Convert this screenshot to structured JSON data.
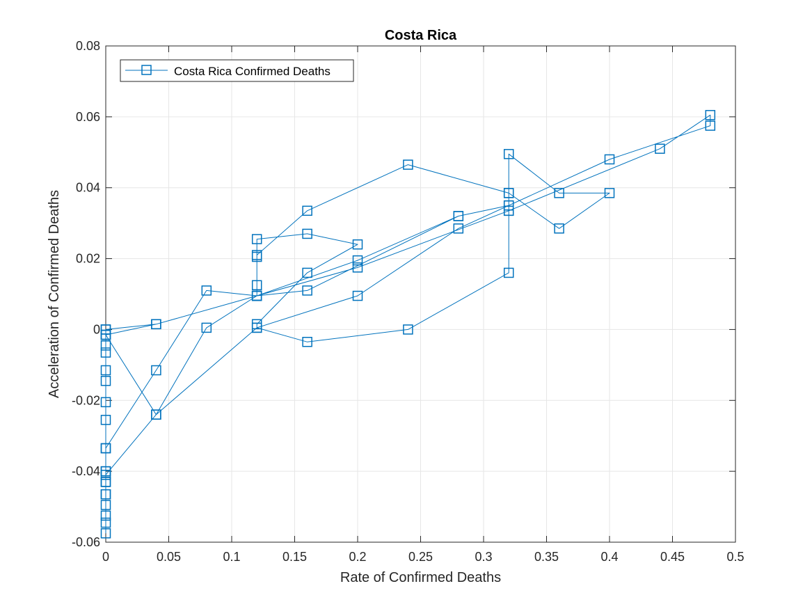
{
  "chart_data": {
    "type": "line",
    "title": "Costa Rica",
    "xlabel": "Rate of Confirmed Deaths",
    "ylabel": "Acceleration of Confirmed Deaths",
    "xlim": [
      0,
      0.5
    ],
    "ylim": [
      -0.06,
      0.08
    ],
    "xticks": [
      0,
      0.05,
      0.1,
      0.15,
      0.2,
      0.25,
      0.3,
      0.35,
      0.4,
      0.45,
      0.5
    ],
    "xtick_labels": [
      "0",
      "0.05",
      "0.1",
      "0.15",
      "0.2",
      "0.25",
      "0.3",
      "0.35",
      "0.4",
      "0.45",
      "0.5"
    ],
    "yticks": [
      -0.06,
      -0.04,
      -0.02,
      0,
      0.02,
      0.04,
      0.06,
      0.08
    ],
    "ytick_labels": [
      "-0.06",
      "-0.04",
      "-0.02",
      "0",
      "0.02",
      "0.04",
      "0.06",
      "0.08"
    ],
    "grid": true,
    "legend_position": "top-left",
    "series": [
      {
        "name": "Costa Rica Confirmed Deaths",
        "color": "#0072BD",
        "marker": "square",
        "x": [
          0,
          0,
          0,
          0,
          0,
          0,
          0,
          0,
          0,
          0,
          0,
          0,
          0,
          0,
          0,
          0,
          0,
          0.04,
          0.08,
          0.12,
          0.12,
          0.12,
          0.12,
          0.16,
          0.2,
          0.16,
          0.12,
          0.12,
          0.16,
          0.24,
          0.32,
          0.32,
          0.32,
          0.32,
          0.32,
          0.36,
          0.4,
          0.36,
          0.32,
          0.24,
          0.16,
          0.12,
          0.12,
          0.08,
          0.04,
          0,
          0,
          0,
          0,
          0,
          0.04,
          0.12,
          0.2,
          0.28,
          0.4,
          0.48,
          0.48,
          0.44,
          0.32,
          0.2,
          0.12,
          0.04,
          0,
          0,
          0.04,
          0.12,
          0.2,
          0.28,
          0.32,
          0.28,
          0.16,
          0.12
        ],
        "y": [
          -0.0575,
          -0.0545,
          -0.0525,
          -0.0495,
          -0.0465,
          -0.043,
          -0.04,
          -0.0335,
          -0.0255,
          -0.0205,
          -0.0145,
          -0.0115,
          -0.0065,
          -0.0045,
          -0.0015,
          0,
          -0.0015,
          -0.024,
          0.0005,
          0.0095,
          0.0125,
          0.0205,
          0.0255,
          0.027,
          0.024,
          0.016,
          0.0015,
          0.0005,
          -0.0035,
          0,
          0.016,
          0.035,
          0.0335,
          0.0385,
          0.0495,
          0.0385,
          0.0385,
          0.0285,
          0.0385,
          0.0465,
          0.0335,
          0.021,
          0.0095,
          0.011,
          -0.0115,
          -0.0335,
          -0.04,
          -0.043,
          -0.0465,
          -0.041,
          -0.024,
          0.0005,
          0.0095,
          0.0285,
          0.048,
          0.0575,
          0.0605,
          0.051,
          0.0335,
          0.0175,
          0.0095,
          0.0015,
          0,
          -0.0015,
          0.0015,
          0.0095,
          0.0195,
          0.032,
          0.035,
          0.032,
          0.011,
          0.0095
        ]
      }
    ]
  }
}
